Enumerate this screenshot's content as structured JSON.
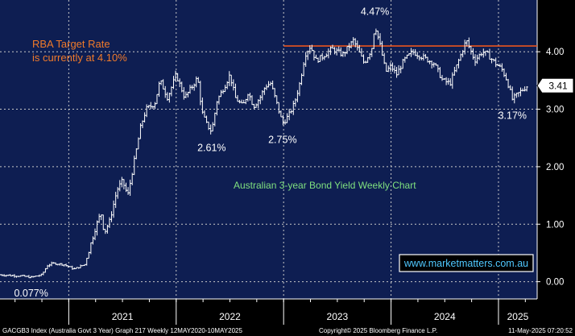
{
  "chart_data": {
    "type": "line",
    "title": "Australian 3-year Bond Yield Weekly Chart",
    "website": "www.marketmatters.com.au",
    "footer_left": "GACGB3 Index (Australia Govt 3 Year) Graph 217  Weekly 12MAY2020-10MAY2025",
    "footer_right": "Copyright© 2025 Bloomberg Finance L.P.",
    "footer_date": "11-May-2025 07:20:52",
    "rba_label_line1": "RBA Target Rate",
    "rba_label_line2": "is currently at 4.10%",
    "rba_rate": 4.1,
    "rba_start_year": 2023.0,
    "last_value": "3.41",
    "last_numeric": 3.41,
    "ylim": [
      -0.3,
      4.9
    ],
    "xlim": [
      2020.36,
      2025.36
    ],
    "y_ticks": [
      {
        "value": 0.0,
        "label": "0.00"
      },
      {
        "value": 1.0,
        "label": "1.00"
      },
      {
        "value": 2.0,
        "label": "2.00"
      },
      {
        "value": 3.0,
        "label": "3.00"
      },
      {
        "value": 4.0,
        "label": "4.00"
      }
    ],
    "x_labels": [
      {
        "label": "2021",
        "center": 2021.5
      },
      {
        "label": "2022",
        "center": 2022.5
      },
      {
        "label": "2023",
        "center": 2023.5
      },
      {
        "label": "2024",
        "center": 2024.5
      },
      {
        "label": "2025",
        "center": 2025.18
      }
    ],
    "year_boundaries": [
      2021.0,
      2022.0,
      2023.0,
      2024.0,
      2025.0
    ],
    "grid": true,
    "annotations": [
      {
        "text": "0.077%",
        "x": 2020.65,
        "y": 0.077,
        "position": "below"
      },
      {
        "text": "2.61%",
        "x": 2022.33,
        "y": 2.61,
        "position": "below"
      },
      {
        "text": "2.75%",
        "x": 2022.99,
        "y": 2.75,
        "position": "below"
      },
      {
        "text": "4.47%",
        "x": 2023.85,
        "y": 4.47,
        "position": "above"
      },
      {
        "text": "3.17%",
        "x": 2025.13,
        "y": 3.17,
        "position": "below"
      }
    ],
    "series": [
      {
        "x": [
          2020.36,
          2020.45,
          2020.55,
          2020.65,
          2020.75,
          2020.8,
          2020.85,
          2020.95,
          2021.05,
          2021.15,
          2021.25,
          2021.3,
          2021.33,
          2021.38,
          2021.45,
          2021.5,
          2021.55,
          2021.6,
          2021.67,
          2021.72,
          2021.8,
          2021.85,
          2021.92,
          2022.0,
          2022.08,
          2022.15,
          2022.2,
          2022.24,
          2022.28,
          2022.33,
          2022.38,
          2022.45,
          2022.5,
          2022.55,
          2022.62,
          2022.67,
          2022.72,
          2022.78,
          2022.83,
          2022.88,
          2022.92,
          2022.96,
          2022.99,
          2023.05,
          2023.1,
          2023.15,
          2023.2,
          2023.25,
          2023.3,
          2023.35,
          2023.45,
          2023.55,
          2023.65,
          2023.75,
          2023.82,
          2023.85,
          2023.9,
          2023.95,
          2024.0,
          2024.05,
          2024.12,
          2024.2,
          2024.3,
          2024.4,
          2024.48,
          2024.55,
          2024.62,
          2024.7,
          2024.78,
          2024.85,
          2024.9,
          2024.97,
          2025.03,
          2025.08,
          2025.13,
          2025.2,
          2025.27
        ],
        "values": [
          0.12,
          0.11,
          0.1,
          0.077,
          0.12,
          0.28,
          0.32,
          0.3,
          0.22,
          0.3,
          0.95,
          1.2,
          0.85,
          1.05,
          1.6,
          1.75,
          1.5,
          2.0,
          2.7,
          3.0,
          3.1,
          3.5,
          3.2,
          3.6,
          3.2,
          3.4,
          3.55,
          2.95,
          2.75,
          2.61,
          3.15,
          3.4,
          3.6,
          3.2,
          3.05,
          3.3,
          3.05,
          3.2,
          3.4,
          3.45,
          3.2,
          2.95,
          2.75,
          2.9,
          3.1,
          3.45,
          3.95,
          4.1,
          3.85,
          3.9,
          4.05,
          3.95,
          4.2,
          3.8,
          4.05,
          4.47,
          4.1,
          3.65,
          3.75,
          3.6,
          3.85,
          4.0,
          3.9,
          3.8,
          3.5,
          3.45,
          3.8,
          4.2,
          3.85,
          4.0,
          3.95,
          3.8,
          3.7,
          3.5,
          3.17,
          3.3,
          3.41
        ]
      }
    ]
  }
}
